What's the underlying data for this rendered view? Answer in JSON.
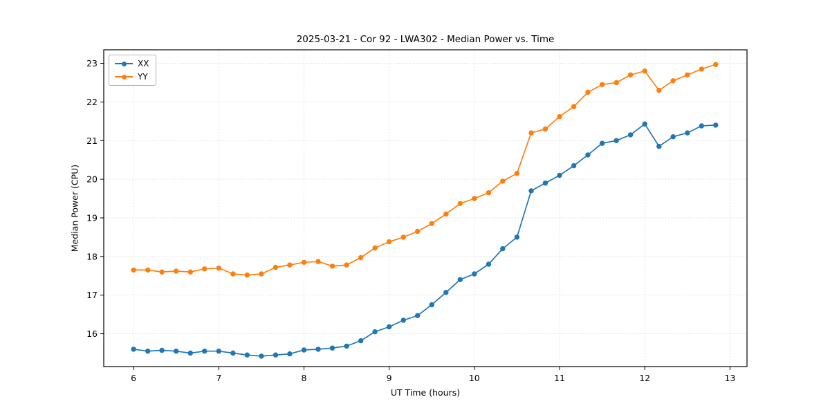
{
  "chart_data": {
    "type": "line",
    "title": "2025-03-21 - Cor 92 - LWA302 - Median Power vs. Time",
    "xlabel": "UT Time (hours)",
    "ylabel": "Median Power (CPU)",
    "xlim": [
      5.65,
      13.2
    ],
    "ylim": [
      15.15,
      23.35
    ],
    "xticks": [
      6,
      7,
      8,
      9,
      10,
      11,
      12,
      13
    ],
    "yticks": [
      16,
      17,
      18,
      19,
      20,
      21,
      22,
      23
    ],
    "grid": true,
    "legend_position": "upper left",
    "x": [
      6.0,
      6.167,
      6.333,
      6.5,
      6.667,
      6.833,
      7.0,
      7.167,
      7.333,
      7.5,
      7.667,
      7.833,
      8.0,
      8.167,
      8.333,
      8.5,
      8.667,
      8.833,
      9.0,
      9.167,
      9.333,
      9.5,
      9.667,
      9.833,
      10.0,
      10.167,
      10.333,
      10.5,
      10.667,
      10.833,
      11.0,
      11.167,
      11.333,
      11.5,
      11.667,
      11.833,
      12.0,
      12.167,
      12.333,
      12.5,
      12.667,
      12.833
    ],
    "series": [
      {
        "name": "XX",
        "color": "#1f77b4",
        "values": [
          15.6,
          15.55,
          15.57,
          15.55,
          15.5,
          15.55,
          15.55,
          15.5,
          15.45,
          15.42,
          15.45,
          15.48,
          15.58,
          15.6,
          15.63,
          15.68,
          15.82,
          16.05,
          16.18,
          16.35,
          16.47,
          16.75,
          17.07,
          17.4,
          17.55,
          17.8,
          18.2,
          18.5,
          19.7,
          19.9,
          20.1,
          20.35,
          20.63,
          20.93,
          21.0,
          21.15,
          21.43,
          20.85,
          21.1,
          21.2,
          21.38,
          21.4
        ]
      },
      {
        "name": "YY",
        "color": "#ff7f0e",
        "values": [
          17.65,
          17.65,
          17.6,
          17.62,
          17.6,
          17.68,
          17.7,
          17.55,
          17.52,
          17.55,
          17.72,
          17.78,
          17.85,
          17.87,
          17.75,
          17.78,
          17.97,
          18.22,
          18.38,
          18.5,
          18.65,
          18.85,
          19.1,
          19.37,
          19.5,
          19.65,
          19.95,
          20.15,
          21.2,
          21.3,
          21.62,
          21.88,
          22.25,
          22.45,
          22.5,
          22.7,
          22.8,
          22.3,
          22.55,
          22.7,
          22.85,
          22.97
        ]
      }
    ]
  }
}
